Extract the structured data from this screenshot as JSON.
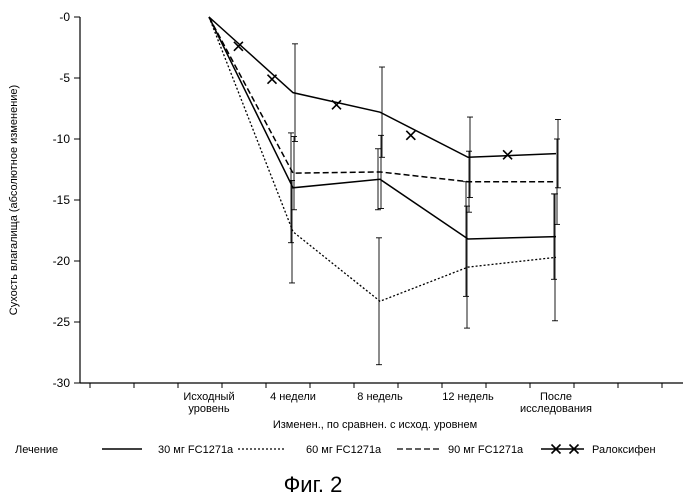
{
  "chart_data": {
    "type": "line",
    "ylabel": "Сухость влагалища (абсолютное изменение)",
    "xlabel": "Изменен., по сравнен. с исход. уровнем",
    "ylim": [
      -30,
      0
    ],
    "yticks": [
      "-0",
      "-5",
      "-10",
      "-15",
      "-20",
      "-25",
      "-30"
    ],
    "ytick_values": [
      0,
      -5,
      -10,
      -15,
      -20,
      -25,
      -30
    ],
    "categories": [
      [
        "Исходный",
        "уровень"
      ],
      [
        "4 недели"
      ],
      [
        "8 недель"
      ],
      [
        "12 недель"
      ],
      [
        "После",
        "исследования"
      ]
    ],
    "series": [
      {
        "name": "30 мг FC1271a",
        "style": "solid",
        "values": [
          0,
          -14.0,
          -13.3,
          -18.2,
          -18.0
        ],
        "error": [
          0,
          4.5,
          2.5,
          4.7,
          3.5
        ]
      },
      {
        "name": "60 мг FC1271a",
        "style": "dotted",
        "values": [
          0,
          -17.6,
          -23.3,
          -20.5,
          -19.7
        ],
        "error": [
          0,
          4.2,
          5.2,
          5.0,
          5.2
        ]
      },
      {
        "name": "90 мг FC1271a",
        "style": "dashed",
        "values": [
          0,
          -12.8,
          -12.7,
          -13.5,
          -13.5
        ],
        "error": [
          0,
          3.0,
          3.0,
          2.5,
          3.5
        ]
      },
      {
        "name": "Ралоксифен",
        "style": "solid-x",
        "values": [
          0,
          -6.2,
          -7.8,
          -11.5,
          -11.2
        ],
        "error": [
          0,
          4.0,
          3.7,
          3.3,
          2.8
        ],
        "markers": [
          {
            "x": 0.35,
            "y": -2.4
          },
          {
            "x": 0.75,
            "y": -5.1
          },
          {
            "x": 1.5,
            "y": -7.2
          },
          {
            "x": 2.35,
            "y": -9.7
          },
          {
            "x": 3.45,
            "y": -11.3
          }
        ]
      }
    ],
    "legend": {
      "title": "Лечение",
      "placement": "bottom"
    },
    "caption": "Фиг. 2",
    "colors": {
      "line": "#000000",
      "background": "#ffffff"
    }
  }
}
